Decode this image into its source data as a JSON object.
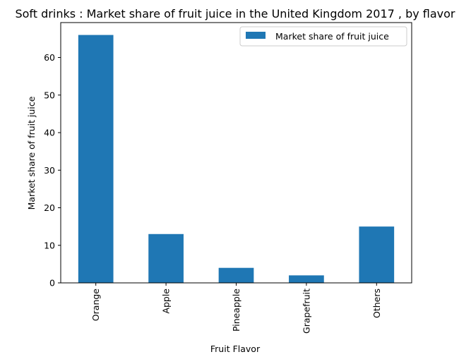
{
  "chart_data": {
    "type": "bar",
    "title": "Soft drinks : Market share of fruit juice in the United Kingdom 2017 , by flavor",
    "xlabel": "Fruit Flavor",
    "ylabel": "Market share of fruit juice",
    "categories": [
      "Orange",
      "Apple",
      "Pineapple",
      "Grapefruit",
      "Others"
    ],
    "series": [
      {
        "name": "Market share of fruit juice",
        "values": [
          66,
          13,
          4,
          2,
          15
        ],
        "color": "#1f77b4"
      }
    ],
    "ylim": [
      0,
      69.3
    ],
    "yticks": [
      0,
      10,
      20,
      30,
      40,
      50,
      60
    ],
    "grid": false,
    "legend_position": "top-right"
  }
}
